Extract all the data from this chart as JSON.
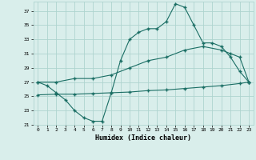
{
  "x_line1": [
    0,
    1,
    2,
    3,
    4,
    5,
    6,
    7,
    8,
    9,
    10,
    11,
    12,
    13,
    14,
    15,
    16,
    17,
    18,
    19,
    20,
    21,
    22,
    23
  ],
  "y_line1": [
    27,
    26.5,
    25.5,
    24.5,
    23,
    22,
    21.5,
    21.5,
    25.5,
    30,
    33,
    34,
    34.5,
    34.5,
    35.5,
    38,
    37.5,
    35,
    32.5,
    32.5,
    32,
    30.5,
    28.5,
    27
  ],
  "x_line2": [
    0,
    2,
    4,
    6,
    8,
    10,
    12,
    14,
    16,
    18,
    20,
    21,
    22,
    23
  ],
  "y_line2": [
    27,
    27,
    27.5,
    27.5,
    28,
    29,
    30,
    30.5,
    31.5,
    32,
    31.5,
    31,
    30.5,
    27
  ],
  "x_line3": [
    0,
    2,
    4,
    6,
    8,
    10,
    12,
    14,
    16,
    18,
    20,
    22,
    23
  ],
  "y_line3": [
    25.2,
    25.3,
    25.3,
    25.4,
    25.5,
    25.6,
    25.8,
    25.9,
    26.1,
    26.3,
    26.5,
    26.8,
    27
  ],
  "line_color": "#1a6e64",
  "bg_color": "#d9eeeb",
  "grid_color": "#aed4cf",
  "xlabel": "Humidex (Indice chaleur)",
  "ylim": [
    21,
    38
  ],
  "yticks": [
    21,
    23,
    25,
    27,
    29,
    31,
    33,
    35,
    37
  ],
  "xticks": [
    0,
    1,
    2,
    3,
    4,
    5,
    6,
    7,
    8,
    9,
    10,
    11,
    12,
    13,
    14,
    15,
    16,
    17,
    18,
    19,
    20,
    21,
    22,
    23
  ],
  "xlim": [
    -0.5,
    23.5
  ]
}
